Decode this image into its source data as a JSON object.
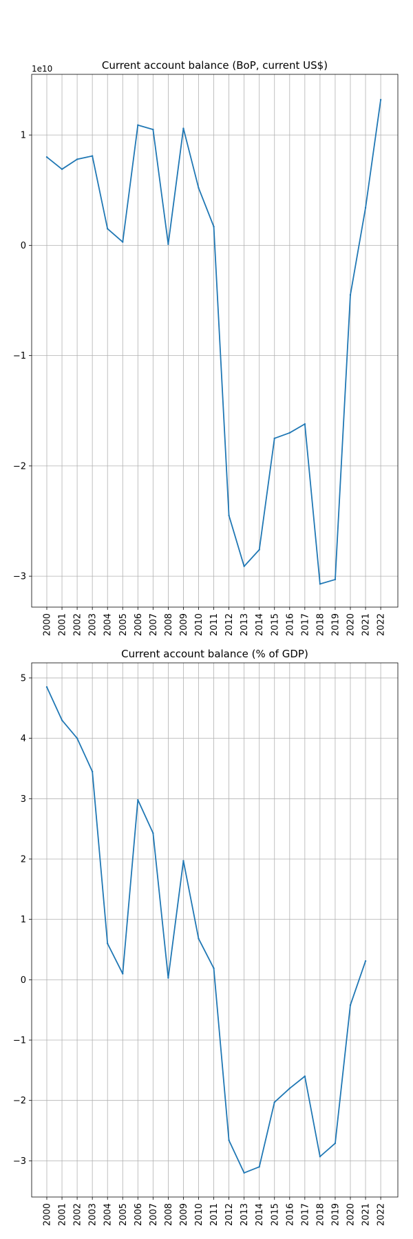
{
  "colors": {
    "series": "#1f77b4",
    "grid": "#b0b0b0",
    "axis": "#000000"
  },
  "chart_data": [
    {
      "type": "line",
      "title": "Current account balance (BoP, current US$)",
      "xlabel": "",
      "ylabel": "",
      "offset_text": "1e10",
      "categories": [
        "2000",
        "2001",
        "2002",
        "2003",
        "2004",
        "2005",
        "2006",
        "2007",
        "2008",
        "2009",
        "2010",
        "2011",
        "2012",
        "2013",
        "2014",
        "2015",
        "2016",
        "2017",
        "2018",
        "2019",
        "2020",
        "2021",
        "2022"
      ],
      "series": [
        {
          "values": [
            8000000000.0,
            6900000000.0,
            7800000000.0,
            8100000000.0,
            1500000000.0,
            300000000.0,
            10900000000.0,
            10500000000.0,
            100000000.0,
            10600000000.0,
            5200000000.0,
            1700000000.0,
            -24500000000.0,
            -29100000000.0,
            -27600000000.0,
            -17500000000.0,
            -17000000000.0,
            -16200000000.0,
            -30700000000.0,
            -30300000000.0,
            -4500000000.0,
            3400000000.0,
            13200000000.0
          ]
        }
      ],
      "ylim": [
        -32800000000.0,
        15500000000.0
      ],
      "yticks": [
        -30000000000.0,
        -20000000000.0,
        -10000000000.0,
        0,
        10000000000.0
      ],
      "ytick_labels": [
        "−3",
        "−2",
        "−1",
        "0",
        "1"
      ],
      "grid": true,
      "legend": "none"
    },
    {
      "type": "line",
      "title": "Current account balance (% of GDP)",
      "xlabel": "",
      "ylabel": "",
      "categories": [
        "2000",
        "2001",
        "2002",
        "2003",
        "2004",
        "2005",
        "2006",
        "2007",
        "2008",
        "2009",
        "2010",
        "2011",
        "2012",
        "2013",
        "2014",
        "2015",
        "2016",
        "2017",
        "2018",
        "2019",
        "2020",
        "2021",
        "2022"
      ],
      "series": [
        {
          "values": [
            4.85,
            4.3,
            4.0,
            3.45,
            0.6,
            0.1,
            2.98,
            2.43,
            0.03,
            1.97,
            0.68,
            0.19,
            -2.66,
            -3.2,
            -3.1,
            -2.03,
            -1.8,
            -1.6,
            -2.93,
            -2.71,
            -0.42,
            0.31,
            null
          ]
        }
      ],
      "ylim": [
        -3.6,
        5.25
      ],
      "yticks": [
        -3,
        -2,
        -1,
        0,
        1,
        2,
        3,
        4,
        5
      ],
      "ytick_labels": [
        "−3",
        "−2",
        "−1",
        "0",
        "1",
        "2",
        "3",
        "4",
        "5"
      ],
      "grid": true,
      "legend": "none"
    }
  ]
}
